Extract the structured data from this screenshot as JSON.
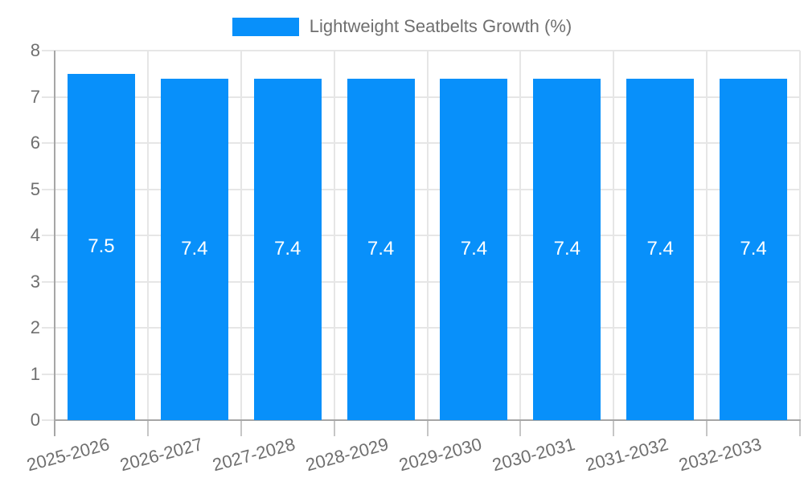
{
  "chart_data": {
    "type": "bar",
    "legend": "Lightweight Seatbelts Growth (%)",
    "legend_position": "top-center",
    "categories": [
      "2025-2026",
      "2026-2027",
      "2027-2028",
      "2028-2029",
      "2029-2030",
      "2030-2031",
      "2031-2032",
      "2032-2033"
    ],
    "values": [
      7.5,
      7.4,
      7.4,
      7.4,
      7.4,
      7.4,
      7.4,
      7.4
    ],
    "value_labels": [
      "7.5",
      "7.4",
      "7.4",
      "7.4",
      "7.4",
      "7.4",
      "7.4",
      "7.4"
    ],
    "xlabel": "",
    "ylabel": "",
    "ylim": [
      0,
      8
    ],
    "yticks": [
      0,
      1,
      2,
      3,
      4,
      5,
      6,
      7,
      8
    ],
    "grid": true,
    "bar_color": "#0890FA",
    "value_label_color": "#ffffff",
    "grid_color": "#e6e6e6",
    "axis_color": "#a6a6a6",
    "tick_color": "#c6c6c6",
    "text_color": "#6f6f6f"
  }
}
